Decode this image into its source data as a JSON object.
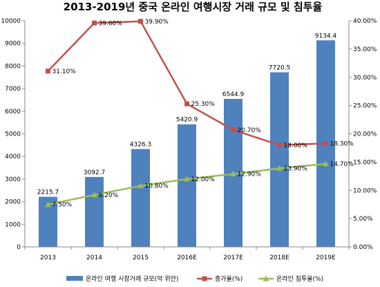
{
  "chart_data": {
    "type": "bar+line",
    "title": "2013-2019년 중국 온라인 여행시장 거래 규모 및 침투율",
    "categories": [
      "2013",
      "2014",
      "2015",
      "2016E",
      "2017E",
      "2018E",
      "2019E"
    ],
    "bar_series": {
      "name": "온라인 여행 시장거래 규모(억 위안)",
      "values": [
        2215.7,
        3092.7,
        4326.3,
        5420.9,
        6544.9,
        7720.5,
        9134.4
      ],
      "labels": [
        "2215.7",
        "3092.7",
        "4326.3",
        "5420.9",
        "6544.9",
        "7720.5",
        "9134.4"
      ],
      "color": "#4F81BD"
    },
    "line_series": [
      {
        "name": "증가율(%)",
        "values": [
          31.1,
          39.6,
          39.9,
          25.3,
          20.7,
          18.0,
          18.3
        ],
        "labels": [
          "31.10%",
          "39.60%",
          "39.90%",
          "25.30%",
          "20.70%",
          "18.00%",
          "18.30%"
        ],
        "color": "#C0504D",
        "marker": "square"
      },
      {
        "name": "온라인 침투율(%)",
        "values": [
          7.5,
          9.2,
          10.8,
          12.0,
          12.9,
          13.9,
          14.7
        ],
        "labels": [
          "7.50%",
          "9.20%",
          "10.80%",
          "12.00%",
          "12.90%",
          "13.90%",
          "14.70%"
        ],
        "color": "#9BBB59",
        "marker": "triangle"
      }
    ],
    "y_left": {
      "range": [
        0,
        10000
      ],
      "ticks": [
        0,
        1000,
        2000,
        3000,
        4000,
        5000,
        6000,
        7000,
        8000,
        9000,
        10000
      ],
      "tick_labels": [
        "0",
        "1000",
        "2000",
        "3000",
        "4000",
        "5000",
        "6000",
        "7000",
        "8000",
        "9000",
        "10000"
      ]
    },
    "y_right": {
      "range": [
        0,
        40
      ],
      "ticks": [
        0,
        5,
        10,
        15,
        20,
        25,
        30,
        35,
        40
      ],
      "tick_labels": [
        "0.00%",
        "5.00%",
        "10.00%",
        "15.00%",
        "20.00%",
        "25.00%",
        "30.00%",
        "35.00%",
        "40.00%"
      ]
    },
    "grid": false,
    "legend_position": "bottom"
  }
}
